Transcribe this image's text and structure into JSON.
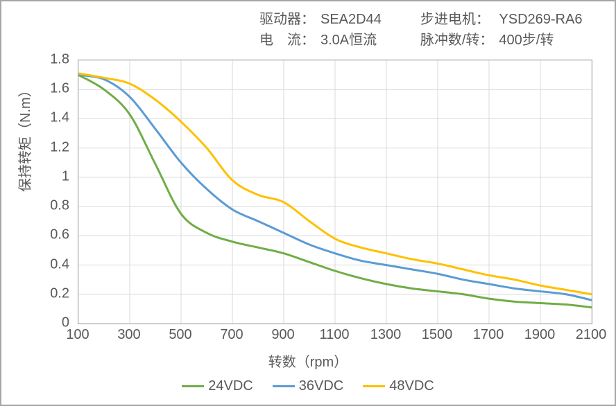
{
  "meta": {
    "driver_label": "驱动器：",
    "driver_value": "SEA2D44",
    "motor_label": "步进电机：",
    "motor_value": "YSD269-RA6",
    "current_label": "电　流：",
    "current_value": "3.0A恒流",
    "pulses_label": "脉冲数/转：",
    "pulses_value": "400步/转"
  },
  "chart": {
    "type": "line",
    "background_color": "#ffffff",
    "border_color": "#a6a6a6",
    "grid_color": "#d9d9d9",
    "text_color": "#595959",
    "ylabel": "保持转矩（N.m）",
    "xlabel": "转数（rpm）",
    "label_fontsize": 20,
    "tick_fontsize": 20,
    "xlim": [
      100,
      2100
    ],
    "ylim": [
      0,
      1.8
    ],
    "xticks": [
      100,
      300,
      500,
      700,
      900,
      1100,
      1300,
      1500,
      1700,
      1900,
      2100
    ],
    "yticks": [
      0,
      0.2,
      0.4,
      0.6,
      0.8,
      1.0,
      1.2,
      1.4,
      1.6,
      1.8
    ],
    "ytick_labels": [
      "0",
      "0.2",
      "0.4",
      "0.6",
      "0.8",
      "1",
      "1.2",
      "1.4",
      "1.6",
      "1.8"
    ],
    "line_width": 3,
    "series": [
      {
        "name": "24VDC",
        "color": "#70ad47",
        "x": [
          100,
          200,
          300,
          400,
          500,
          600,
          700,
          800,
          900,
          1000,
          1100,
          1200,
          1300,
          1400,
          1500,
          1600,
          1700,
          1800,
          1900,
          2000,
          2100
        ],
        "y": [
          1.7,
          1.6,
          1.43,
          1.09,
          0.75,
          0.62,
          0.56,
          0.52,
          0.48,
          0.42,
          0.36,
          0.31,
          0.27,
          0.24,
          0.22,
          0.2,
          0.17,
          0.15,
          0.14,
          0.13,
          0.11
        ]
      },
      {
        "name": "36VDC",
        "color": "#5b9bd5",
        "x": [
          100,
          200,
          300,
          400,
          500,
          600,
          700,
          800,
          900,
          1000,
          1100,
          1200,
          1300,
          1400,
          1500,
          1600,
          1700,
          1800,
          1900,
          2000,
          2100
        ],
        "y": [
          1.7,
          1.67,
          1.55,
          1.33,
          1.1,
          0.92,
          0.78,
          0.7,
          0.62,
          0.54,
          0.48,
          0.43,
          0.4,
          0.37,
          0.34,
          0.3,
          0.27,
          0.24,
          0.22,
          0.2,
          0.16
        ]
      },
      {
        "name": "48VDC",
        "color": "#ffc000",
        "x": [
          100,
          200,
          300,
          400,
          500,
          600,
          700,
          800,
          900,
          1000,
          1100,
          1200,
          1300,
          1400,
          1500,
          1600,
          1700,
          1800,
          1900,
          2000,
          2100
        ],
        "y": [
          1.71,
          1.68,
          1.64,
          1.53,
          1.38,
          1.2,
          0.98,
          0.88,
          0.83,
          0.7,
          0.58,
          0.52,
          0.48,
          0.44,
          0.41,
          0.37,
          0.33,
          0.3,
          0.26,
          0.23,
          0.2
        ]
      }
    ],
    "legend_position": "bottom"
  }
}
